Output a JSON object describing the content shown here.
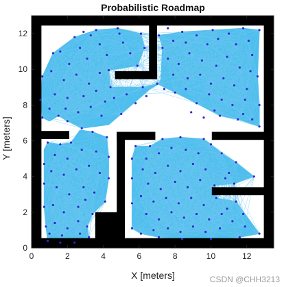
{
  "chart_data": {
    "type": "scatter",
    "title": "Probabilistic Roadmap",
    "xlabel": "X [meters]",
    "ylabel": "Y [meters]",
    "xlim": [
      0,
      13.5
    ],
    "ylim": [
      0,
      13
    ],
    "xticks": [
      "0",
      "2",
      "4",
      "6",
      "8",
      "10",
      "12"
    ],
    "yticks": [
      "0",
      "2",
      "4",
      "6",
      "8",
      "10",
      "12"
    ],
    "grid": false,
    "colors": {
      "obstacle": "#000000",
      "edges": "#4dbeee",
      "nodes": "#2a2ad6",
      "free": "#ffffff"
    },
    "obstacles": [
      {
        "x": 0.0,
        "y": 0.0,
        "w": 13.5,
        "h": 0.55
      },
      {
        "x": 0.0,
        "y": 12.45,
        "w": 13.5,
        "h": 0.55
      },
      {
        "x": 0.0,
        "y": 0.0,
        "w": 0.55,
        "h": 13.0
      },
      {
        "x": 12.95,
        "y": 0.0,
        "w": 0.55,
        "h": 13.0
      },
      {
        "x": 3.55,
        "y": 0.0,
        "w": 1.65,
        "h": 2.0
      },
      {
        "x": 4.75,
        "y": 0.0,
        "w": 0.45,
        "h": 6.5
      },
      {
        "x": 4.75,
        "y": 6.05,
        "w": 2.15,
        "h": 0.45
      },
      {
        "x": 0.0,
        "y": 6.1,
        "w": 2.1,
        "h": 0.45
      },
      {
        "x": 4.65,
        "y": 9.45,
        "w": 2.35,
        "h": 0.45
      },
      {
        "x": 6.55,
        "y": 9.45,
        "w": 0.45,
        "h": 3.55
      },
      {
        "x": 10.05,
        "y": 6.05,
        "w": 3.45,
        "h": 0.45
      },
      {
        "x": 10.05,
        "y": 2.95,
        "w": 3.45,
        "h": 0.45
      }
    ],
    "regions": [
      {
        "name": "top-left",
        "pts": [
          [
            0.6,
            9.6
          ],
          [
            1.2,
            10.9
          ],
          [
            2.4,
            11.8
          ],
          [
            3.6,
            12.2
          ],
          [
            4.8,
            12.3
          ],
          [
            6.1,
            12.0
          ],
          [
            6.3,
            11.2
          ],
          [
            5.9,
            10.2
          ],
          [
            4.3,
            9.95
          ],
          [
            4.4,
            9.0
          ],
          [
            6.2,
            9.0
          ],
          [
            7.0,
            9.2
          ],
          [
            8.0,
            8.7
          ],
          [
            9.2,
            8.1
          ],
          [
            10.5,
            7.4
          ],
          [
            11.5,
            7.2
          ],
          [
            12.7,
            6.8
          ],
          [
            12.7,
            8.0
          ],
          [
            12.6,
            9.6
          ],
          [
            12.7,
            12.2
          ],
          [
            11.8,
            12.3
          ],
          [
            10.1,
            12.2
          ],
          [
            8.4,
            12.1
          ],
          [
            7.1,
            11.9
          ],
          [
            7.3,
            11.2
          ],
          [
            7.2,
            9.4
          ],
          [
            7.05,
            9.15
          ],
          [
            6.6,
            8.9
          ],
          [
            5.0,
            7.5
          ],
          [
            4.3,
            6.9
          ],
          [
            2.8,
            6.7
          ],
          [
            2.0,
            7.1
          ],
          [
            1.5,
            7.4
          ],
          [
            1.0,
            7.1
          ],
          [
            0.6,
            7.3
          ],
          [
            0.5,
            8.3
          ]
        ]
      },
      {
        "name": "left-lower",
        "pts": [
          [
            0.9,
            5.9
          ],
          [
            1.6,
            5.8
          ],
          [
            2.2,
            5.9
          ],
          [
            2.7,
            6.6
          ],
          [
            3.4,
            6.5
          ],
          [
            4.2,
            6.2
          ],
          [
            4.3,
            5.1
          ],
          [
            4.3,
            3.9
          ],
          [
            4.1,
            2.6
          ],
          [
            3.4,
            1.9
          ],
          [
            3.1,
            1.2
          ],
          [
            3.2,
            0.6
          ],
          [
            2.4,
            0.3
          ],
          [
            1.6,
            0.3
          ],
          [
            0.9,
            0.4
          ],
          [
            0.8,
            1.2
          ],
          [
            0.7,
            2.3
          ],
          [
            0.7,
            3.6
          ],
          [
            0.7,
            4.7
          ],
          [
            0.7,
            5.5
          ]
        ]
      },
      {
        "name": "right-lower",
        "pts": [
          [
            5.8,
            5.7
          ],
          [
            6.6,
            5.7
          ],
          [
            7.3,
            6.1
          ],
          [
            8.3,
            6.2
          ],
          [
            9.6,
            6.1
          ],
          [
            10.0,
            5.8
          ],
          [
            10.6,
            5.3
          ],
          [
            11.4,
            4.8
          ],
          [
            12.4,
            4.0
          ],
          [
            11.3,
            3.6
          ],
          [
            10.2,
            3.5
          ],
          [
            10.3,
            2.8
          ],
          [
            11.4,
            2.6
          ],
          [
            12.7,
            0.8
          ],
          [
            11.6,
            0.6
          ],
          [
            10.0,
            0.5
          ],
          [
            8.4,
            0.5
          ],
          [
            7.1,
            0.6
          ],
          [
            6.1,
            0.8
          ],
          [
            5.6,
            1.1
          ],
          [
            5.6,
            2.5
          ],
          [
            5.6,
            3.9
          ],
          [
            5.6,
            5.0
          ]
        ]
      }
    ],
    "nodes": [
      [
        1.2,
        10.9
      ],
      [
        2.4,
        11.8
      ],
      [
        3.6,
        12.2
      ],
      [
        4.8,
        12.3
      ],
      [
        6.1,
        12.0
      ],
      [
        6.3,
        11.2
      ],
      [
        5.9,
        10.2
      ],
      [
        4.3,
        9.95
      ],
      [
        4.4,
        9.0
      ],
      [
        6.2,
        9.0
      ],
      [
        7.0,
        9.2
      ],
      [
        8.0,
        8.7
      ],
      [
        9.2,
        8.1
      ],
      [
        10.5,
        7.4
      ],
      [
        11.5,
        7.2
      ],
      [
        12.7,
        6.8
      ],
      [
        12.7,
        8.0
      ],
      [
        12.6,
        9.6
      ],
      [
        12.7,
        12.2
      ],
      [
        11.8,
        12.3
      ],
      [
        10.1,
        12.2
      ],
      [
        8.4,
        12.1
      ],
      [
        7.1,
        11.9
      ],
      [
        7.3,
        11.2
      ],
      [
        2.8,
        6.7
      ],
      [
        1.5,
        7.4
      ],
      [
        0.6,
        7.3
      ],
      [
        0.5,
        8.3
      ],
      [
        0.6,
        9.6
      ],
      [
        2.0,
        7.1
      ],
      [
        5.0,
        7.5
      ],
      [
        1.6,
        11.0
      ],
      [
        2.1,
        10.3
      ],
      [
        2.7,
        11.2
      ],
      [
        3.1,
        10.6
      ],
      [
        3.8,
        11.4
      ],
      [
        4.2,
        10.8
      ],
      [
        5.1,
        11.5
      ],
      [
        5.5,
        10.9
      ],
      [
        4.9,
        12.0
      ],
      [
        3.3,
        11.9
      ],
      [
        2.9,
        12.1
      ],
      [
        1.1,
        9.9
      ],
      [
        1.8,
        9.4
      ],
      [
        2.5,
        9.7
      ],
      [
        3.2,
        9.2
      ],
      [
        3.8,
        9.8
      ],
      [
        1.3,
        8.6
      ],
      [
        2.0,
        8.4
      ],
      [
        2.9,
        8.5
      ],
      [
        3.6,
        8.8
      ],
      [
        4.1,
        8.2
      ],
      [
        1.0,
        7.8
      ],
      [
        1.9,
        7.8
      ],
      [
        2.6,
        7.6
      ],
      [
        3.3,
        7.9
      ],
      [
        3.9,
        7.4
      ],
      [
        4.6,
        8.4
      ],
      [
        5.3,
        8.6
      ],
      [
        5.8,
        8.1
      ],
      [
        6.4,
        8.5
      ],
      [
        7.6,
        12.3
      ],
      [
        7.9,
        11.6
      ],
      [
        8.6,
        11.5
      ],
      [
        9.2,
        11.9
      ],
      [
        9.8,
        11.4
      ],
      [
        10.4,
        11.7
      ],
      [
        11.0,
        12.0
      ],
      [
        11.4,
        11.4
      ],
      [
        12.1,
        11.6
      ],
      [
        12.3,
        10.8
      ],
      [
        7.6,
        10.6
      ],
      [
        8.2,
        10.3
      ],
      [
        8.8,
        10.9
      ],
      [
        9.5,
        10.5
      ],
      [
        10.3,
        10.2
      ],
      [
        10.9,
        10.7
      ],
      [
        11.6,
        10.1
      ],
      [
        12.2,
        9.9
      ],
      [
        7.9,
        9.7
      ],
      [
        8.7,
        9.5
      ],
      [
        9.4,
        9.7
      ],
      [
        10.0,
        9.2
      ],
      [
        10.7,
        9.5
      ],
      [
        11.3,
        9.1
      ],
      [
        12.0,
        8.9
      ],
      [
        7.4,
        8.9
      ],
      [
        8.6,
        8.9
      ],
      [
        9.9,
        8.6
      ],
      [
        10.6,
        8.3
      ],
      [
        11.2,
        8.0
      ],
      [
        11.9,
        8.3
      ],
      [
        8.9,
        7.6
      ],
      [
        9.6,
        7.3
      ],
      [
        10.2,
        7.7
      ],
      [
        11.8,
        7.5
      ],
      [
        12.3,
        7.2
      ],
      [
        0.9,
        5.9
      ],
      [
        1.6,
        5.8
      ],
      [
        2.2,
        5.9
      ],
      [
        3.4,
        6.5
      ],
      [
        4.2,
        6.2
      ],
      [
        4.3,
        5.1
      ],
      [
        4.3,
        3.9
      ],
      [
        4.1,
        2.6
      ],
      [
        3.4,
        1.9
      ],
      [
        3.1,
        1.2
      ],
      [
        3.2,
        0.6
      ],
      [
        2.4,
        0.3
      ],
      [
        1.6,
        0.3
      ],
      [
        0.9,
        0.4
      ],
      [
        0.8,
        1.2
      ],
      [
        0.7,
        2.3
      ],
      [
        0.7,
        3.6
      ],
      [
        0.7,
        4.7
      ],
      [
        1.3,
        5.2
      ],
      [
        2.0,
        5.0
      ],
      [
        2.8,
        5.5
      ],
      [
        3.6,
        5.4
      ],
      [
        1.1,
        4.3
      ],
      [
        1.8,
        4.1
      ],
      [
        2.5,
        4.4
      ],
      [
        3.2,
        4.6
      ],
      [
        3.8,
        4.2
      ],
      [
        1.4,
        3.4
      ],
      [
        2.1,
        3.0
      ],
      [
        2.9,
        3.4
      ],
      [
        3.5,
        3.1
      ],
      [
        1.2,
        2.4
      ],
      [
        1.8,
        2.0
      ],
      [
        2.6,
        2.3
      ],
      [
        3.0,
        2.7
      ],
      [
        1.3,
        1.4
      ],
      [
        2.0,
        1.1
      ],
      [
        2.6,
        1.5
      ],
      [
        1.7,
        0.7
      ],
      [
        2.7,
        0.8
      ],
      [
        1.0,
        0.8
      ],
      [
        5.8,
        5.7
      ],
      [
        6.6,
        5.7
      ],
      [
        7.3,
        6.1
      ],
      [
        8.3,
        6.2
      ],
      [
        9.6,
        6.1
      ],
      [
        10.0,
        5.8
      ],
      [
        10.6,
        5.3
      ],
      [
        11.4,
        4.8
      ],
      [
        12.4,
        4.0
      ],
      [
        11.3,
        3.6
      ],
      [
        10.2,
        3.5
      ],
      [
        10.3,
        2.8
      ],
      [
        11.4,
        2.6
      ],
      [
        12.7,
        0.8
      ],
      [
        11.6,
        0.6
      ],
      [
        10.0,
        0.5
      ],
      [
        8.4,
        0.5
      ],
      [
        7.1,
        0.6
      ],
      [
        6.1,
        0.8
      ],
      [
        5.6,
        1.1
      ],
      [
        5.6,
        2.5
      ],
      [
        5.6,
        3.9
      ],
      [
        5.6,
        5.0
      ],
      [
        6.4,
        5.0
      ],
      [
        7.1,
        5.3
      ],
      [
        7.8,
        5.6
      ],
      [
        8.6,
        5.5
      ],
      [
        9.3,
        5.3
      ],
      [
        6.2,
        4.4
      ],
      [
        6.9,
        4.2
      ],
      [
        7.6,
        4.6
      ],
      [
        8.3,
        4.3
      ],
      [
        9.0,
        4.7
      ],
      [
        9.7,
        4.4
      ],
      [
        6.5,
        3.6
      ],
      [
        7.2,
        3.3
      ],
      [
        8.0,
        3.7
      ],
      [
        8.7,
        3.4
      ],
      [
        9.4,
        3.8
      ],
      [
        6.1,
        2.9
      ],
      [
        6.8,
        2.6
      ],
      [
        7.5,
        2.8
      ],
      [
        8.2,
        2.5
      ],
      [
        8.9,
        2.8
      ],
      [
        9.6,
        2.4
      ],
      [
        6.4,
        1.9
      ],
      [
        7.1,
        1.6
      ],
      [
        7.8,
        2.0
      ],
      [
        8.5,
        1.7
      ],
      [
        9.2,
        1.9
      ],
      [
        9.9,
        1.6
      ],
      [
        10.6,
        1.9
      ],
      [
        11.2,
        1.5
      ],
      [
        11.9,
        1.2
      ],
      [
        6.8,
        1.0
      ],
      [
        7.6,
        1.1
      ],
      [
        8.3,
        0.9
      ],
      [
        9.0,
        1.2
      ],
      [
        9.7,
        0.9
      ],
      [
        10.5,
        1.1
      ],
      [
        11.0,
        4.2
      ],
      [
        10.8,
        3.9
      ],
      [
        10.9,
        2.2
      ],
      [
        11.8,
        1.9
      ]
    ]
  },
  "watermark": "CSDN @CHH3213"
}
